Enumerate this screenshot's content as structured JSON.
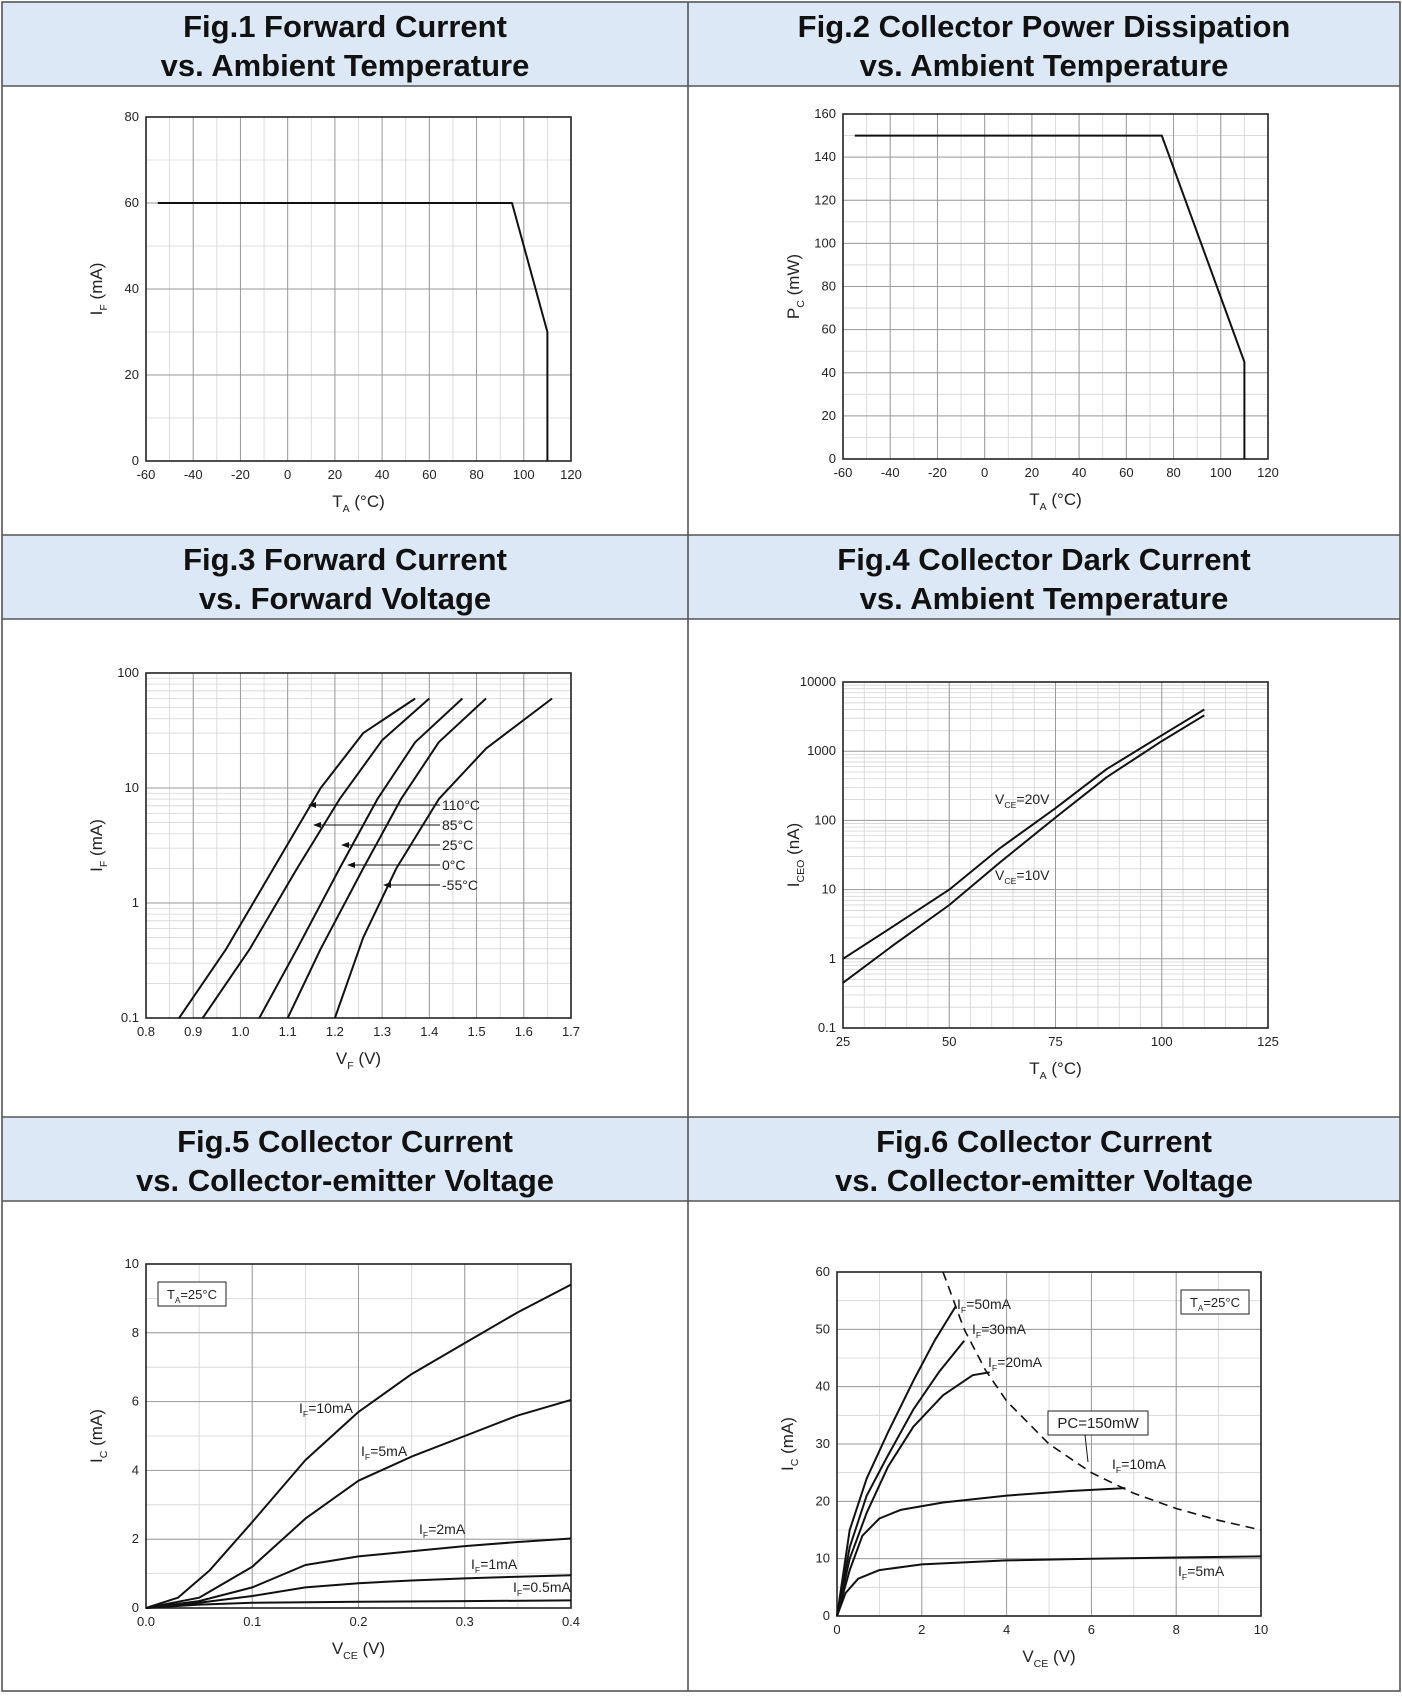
{
  "panels": [
    {
      "title_line1": "Fig.1 Forward Current",
      "title_line2": "vs. Ambient Temperature",
      "chart_data": {
        "type": "line",
        "xlabel": {
          "main": "T",
          "sub": "A",
          "rest": " (°C)"
        },
        "ylabel": {
          "main": "I",
          "sub": "F",
          "rest": " (mA)"
        },
        "xlim": [
          -60,
          120
        ],
        "ylim": [
          0,
          80
        ],
        "x_major_ticks": [
          -60,
          -40,
          -20,
          0,
          20,
          40,
          60,
          80,
          100,
          120
        ],
        "y_major_ticks": [
          0,
          20,
          40,
          60,
          80
        ],
        "x_minor_step": 10,
        "y_minor_step": 10,
        "series": [
          {
            "points": [
              [
                -55,
                60
              ],
              [
                95,
                60
              ],
              [
                110,
                30
              ],
              [
                110,
                0
              ]
            ]
          }
        ]
      }
    },
    {
      "title_line1": "Fig.2 Collector Power Dissipation",
      "title_line2": "vs. Ambient Temperature",
      "chart_data": {
        "type": "line",
        "xlabel": {
          "main": "T",
          "sub": "A",
          "rest": " (°C)"
        },
        "ylabel": {
          "main": "P",
          "sub": "C",
          "rest": " (mW)"
        },
        "xlim": [
          -60,
          120
        ],
        "ylim": [
          0,
          160
        ],
        "x_major_ticks": [
          -60,
          -40,
          -20,
          0,
          20,
          40,
          60,
          80,
          100,
          120
        ],
        "y_major_ticks": [
          0,
          20,
          40,
          60,
          80,
          100,
          120,
          140,
          160
        ],
        "x_minor_step": 10,
        "y_minor_step": 10,
        "series": [
          {
            "points": [
              [
                -55,
                150
              ],
              [
                75,
                150
              ],
              [
                110,
                45
              ],
              [
                110,
                0
              ]
            ]
          }
        ]
      }
    },
    {
      "title_line1": "Fig.3 Forward Current",
      "title_line2": "vs. Forward Voltage",
      "chart_data": {
        "type": "line",
        "xlabel": {
          "main": "V",
          "sub": "F",
          "rest": " (V)"
        },
        "ylabel": {
          "main": "I",
          "sub": "F",
          "rest": " (mA)"
        },
        "xlim": [
          0.8,
          1.7
        ],
        "ylim": [
          0.1,
          100
        ],
        "yscale": "log",
        "x_major_ticks": [
          0.8,
          0.9,
          1.0,
          1.1,
          1.2,
          1.3,
          1.4,
          1.5,
          1.6,
          1.7
        ],
        "x_tick_labels": [
          "0.8",
          "0.9",
          "1.0",
          "1.1",
          "1.2",
          "1.3",
          "1.4",
          "1.5",
          "1.6",
          "1.7"
        ],
        "y_major_ticks": [
          0.1,
          1,
          10,
          100
        ],
        "y_tick_labels": [
          "0.1",
          "1",
          "10",
          "100"
        ],
        "x_minor_step": 0.05,
        "series": [
          {
            "name": "110°C",
            "points": [
              [
                0.87,
                0.1
              ],
              [
                0.97,
                0.4
              ],
              [
                1.07,
                2
              ],
              [
                1.17,
                10
              ],
              [
                1.26,
                30
              ],
              [
                1.37,
                60
              ]
            ]
          },
          {
            "name": "85°C",
            "points": [
              [
                0.92,
                0.1
              ],
              [
                1.02,
                0.4
              ],
              [
                1.12,
                2
              ],
              [
                1.21,
                8
              ],
              [
                1.3,
                26
              ],
              [
                1.4,
                60
              ]
            ]
          },
          {
            "name": "25°C",
            "points": [
              [
                1.04,
                0.1
              ],
              [
                1.12,
                0.4
              ],
              [
                1.21,
                2
              ],
              [
                1.29,
                8
              ],
              [
                1.37,
                25
              ],
              [
                1.47,
                60
              ]
            ]
          },
          {
            "name": "0°C",
            "points": [
              [
                1.1,
                0.1
              ],
              [
                1.17,
                0.4
              ],
              [
                1.26,
                2
              ],
              [
                1.34,
                8
              ],
              [
                1.42,
                25
              ],
              [
                1.52,
                60
              ]
            ]
          },
          {
            "name": "-55°C",
            "points": [
              [
                1.2,
                0.1
              ],
              [
                1.26,
                0.5
              ],
              [
                1.33,
                2
              ],
              [
                1.42,
                8
              ],
              [
                1.52,
                22
              ],
              [
                1.66,
                60
              ]
            ]
          }
        ]
      }
    },
    {
      "title_line1": "Fig.4 Collector Dark Current",
      "title_line2": "vs. Ambient Temperature",
      "chart_data": {
        "type": "line",
        "xlabel": {
          "main": "T",
          "sub": "A",
          "rest": " (°C)"
        },
        "ylabel": {
          "main": "I",
          "sub": "CEO",
          "rest": " (nA)"
        },
        "xlim": [
          25,
          125
        ],
        "ylim": [
          0.1,
          10000
        ],
        "yscale": "log",
        "x_major_ticks": [
          25,
          50,
          75,
          100,
          125
        ],
        "y_major_ticks": [
          0.1,
          1,
          10,
          100,
          1000,
          10000
        ],
        "y_tick_labels": [
          "0.1",
          "1",
          "10",
          "100",
          "1000",
          "10000"
        ],
        "x_minor_step": 5,
        "series": [
          {
            "name": "V_CE=20V",
            "points": [
              [
                25,
                1.0
              ],
              [
                37,
                3
              ],
              [
                50,
                10
              ],
              [
                62,
                40
              ],
              [
                75,
                150
              ],
              [
                87,
                550
              ],
              [
                100,
                1700
              ],
              [
                110,
                4000
              ]
            ]
          },
          {
            "name": "V_CE=10V",
            "points": [
              [
                25,
                0.45
              ],
              [
                37,
                1.6
              ],
              [
                50,
                6
              ],
              [
                62,
                25
              ],
              [
                75,
                110
              ],
              [
                87,
                420
              ],
              [
                100,
                1400
              ],
              [
                110,
                3300
              ]
            ]
          }
        ],
        "annotations": [
          {
            "main": "V",
            "sub": "CE",
            "rest": "=20V"
          },
          {
            "main": "V",
            "sub": "CE",
            "rest": "=10V"
          }
        ]
      }
    },
    {
      "title_line1": "Fig.5 Collector Current",
      "title_line2": "vs. Collector-emitter Voltage",
      "chart_data": {
        "type": "line",
        "xlabel": {
          "main": "V",
          "sub": "CE",
          "rest": " (V)"
        },
        "ylabel": {
          "main": "I",
          "sub": "C",
          "rest": " (mA)"
        },
        "xlim": [
          0,
          0.4
        ],
        "ylim": [
          0,
          10
        ],
        "x_major_ticks": [
          0,
          0.1,
          0.2,
          0.3,
          0.4
        ],
        "x_tick_labels": [
          "0.0",
          "0.1",
          "0.2",
          "0.3",
          "0.4"
        ],
        "y_major_ticks": [
          0,
          2,
          4,
          6,
          8,
          10
        ],
        "x_minor_step": 0.05,
        "y_minor_step": 1,
        "box": {
          "main": "T",
          "sub": "A",
          "rest": "=25°C"
        },
        "series": [
          {
            "name": "I_F=10mA",
            "points": [
              [
                0,
                0
              ],
              [
                0.03,
                0.3
              ],
              [
                0.06,
                1.1
              ],
              [
                0.1,
                2.5
              ],
              [
                0.15,
                4.3
              ],
              [
                0.2,
                5.7
              ],
              [
                0.25,
                6.8
              ],
              [
                0.3,
                7.7
              ],
              [
                0.35,
                8.6
              ],
              [
                0.4,
                9.4
              ]
            ]
          },
          {
            "name": "I_F=5mA",
            "points": [
              [
                0,
                0
              ],
              [
                0.05,
                0.3
              ],
              [
                0.1,
                1.2
              ],
              [
                0.15,
                2.6
              ],
              [
                0.2,
                3.7
              ],
              [
                0.25,
                4.4
              ],
              [
                0.3,
                5.0
              ],
              [
                0.35,
                5.6
              ],
              [
                0.4,
                6.05
              ]
            ]
          },
          {
            "name": "I_F=2mA",
            "points": [
              [
                0,
                0
              ],
              [
                0.05,
                0.2
              ],
              [
                0.1,
                0.6
              ],
              [
                0.15,
                1.25
              ],
              [
                0.2,
                1.5
              ],
              [
                0.25,
                1.65
              ],
              [
                0.3,
                1.8
              ],
              [
                0.35,
                1.92
              ],
              [
                0.4,
                2.02
              ]
            ]
          },
          {
            "name": "I_F=1mA",
            "points": [
              [
                0,
                0
              ],
              [
                0.05,
                0.15
              ],
              [
                0.1,
                0.35
              ],
              [
                0.15,
                0.6
              ],
              [
                0.2,
                0.72
              ],
              [
                0.25,
                0.8
              ],
              [
                0.3,
                0.86
              ],
              [
                0.35,
                0.91
              ],
              [
                0.4,
                0.95
              ]
            ]
          },
          {
            "name": "I_F=0.5mA",
            "points": [
              [
                0,
                0
              ],
              [
                0.05,
                0.1
              ],
              [
                0.1,
                0.15
              ],
              [
                0.2,
                0.18
              ],
              [
                0.3,
                0.2
              ],
              [
                0.4,
                0.22
              ]
            ]
          }
        ],
        "annotations": [
          {
            "main": "I",
            "sub": "F",
            "rest": "=10mA"
          },
          {
            "main": "I",
            "sub": "F",
            "rest": "=5mA"
          },
          {
            "main": "I",
            "sub": "F",
            "rest": "=2mA"
          },
          {
            "main": "I",
            "sub": "F",
            "rest": "=1mA"
          },
          {
            "main": "I",
            "sub": "F",
            "rest": "=0.5mA"
          }
        ]
      }
    },
    {
      "title_line1": "Fig.6 Collector Current",
      "title_line2": "vs. Collector-emitter Voltage",
      "chart_data": {
        "type": "line",
        "xlabel": {
          "main": "V",
          "sub": "CE",
          "rest": " (V)"
        },
        "ylabel": {
          "main": "I",
          "sub": "C",
          "rest": " (mA)"
        },
        "xlim": [
          0,
          10
        ],
        "ylim": [
          0,
          60
        ],
        "x_major_ticks": [
          0,
          2,
          4,
          6,
          8,
          10
        ],
        "y_major_ticks": [
          0,
          10,
          20,
          30,
          40,
          50,
          60
        ],
        "x_minor_step": 1,
        "y_minor_step": 5,
        "box": {
          "main": "T",
          "sub": "A",
          "rest": "=25°C"
        },
        "pc_box": "PC=150mW",
        "series": [
          {
            "name": "I_F=50mA",
            "points": [
              [
                0,
                0
              ],
              [
                0.3,
                15
              ],
              [
                0.7,
                24
              ],
              [
                1.2,
                32
              ],
              [
                1.8,
                41
              ],
              [
                2.3,
                48
              ],
              [
                2.8,
                54
              ]
            ]
          },
          {
            "name": "I_F=30mA",
            "points": [
              [
                0,
                0
              ],
              [
                0.3,
                12
              ],
              [
                0.7,
                21
              ],
              [
                1.2,
                28
              ],
              [
                1.8,
                36
              ],
              [
                2.4,
                42.5
              ],
              [
                3.0,
                48
              ]
            ]
          },
          {
            "name": "I_F=20mA",
            "points": [
              [
                0,
                0
              ],
              [
                0.3,
                10
              ],
              [
                0.7,
                18
              ],
              [
                1.2,
                26
              ],
              [
                1.8,
                33
              ],
              [
                2.5,
                38.5
              ],
              [
                3.2,
                42
              ],
              [
                3.6,
                42.5
              ]
            ]
          },
          {
            "name": "I_F=10mA",
            "points": [
              [
                0,
                0
              ],
              [
                0.3,
                8
              ],
              [
                0.6,
                14
              ],
              [
                1.0,
                17
              ],
              [
                1.5,
                18.5
              ],
              [
                2.5,
                19.8
              ],
              [
                4.0,
                21
              ],
              [
                5.5,
                21.8
              ],
              [
                6.8,
                22.3
              ]
            ]
          },
          {
            "name": "I_F=5mA",
            "points": [
              [
                0,
                0
              ],
              [
                0.2,
                4
              ],
              [
                0.5,
                6.5
              ],
              [
                1.0,
                8
              ],
              [
                2.0,
                9
              ],
              [
                4.0,
                9.7
              ],
              [
                6.0,
                10
              ],
              [
                8.0,
                10.2
              ],
              [
                10,
                10.4
              ]
            ]
          }
        ],
        "pc_curve": [
          [
            2.5,
            60
          ],
          [
            3,
            50
          ],
          [
            3.5,
            42.9
          ],
          [
            4,
            37.5
          ],
          [
            5,
            30
          ],
          [
            6,
            25
          ],
          [
            7,
            21.4
          ],
          [
            8,
            18.75
          ],
          [
            9,
            16.7
          ],
          [
            10,
            15
          ]
        ],
        "annotations": [
          {
            "main": "I",
            "sub": "F",
            "rest": "=50mA"
          },
          {
            "main": "I",
            "sub": "F",
            "rest": "=30mA"
          },
          {
            "main": "I",
            "sub": "F",
            "rest": "=20mA"
          },
          {
            "main": "I",
            "sub": "F",
            "rest": "=10mA"
          },
          {
            "main": "I",
            "sub": "F",
            "rest": "=5mA"
          }
        ]
      }
    }
  ]
}
